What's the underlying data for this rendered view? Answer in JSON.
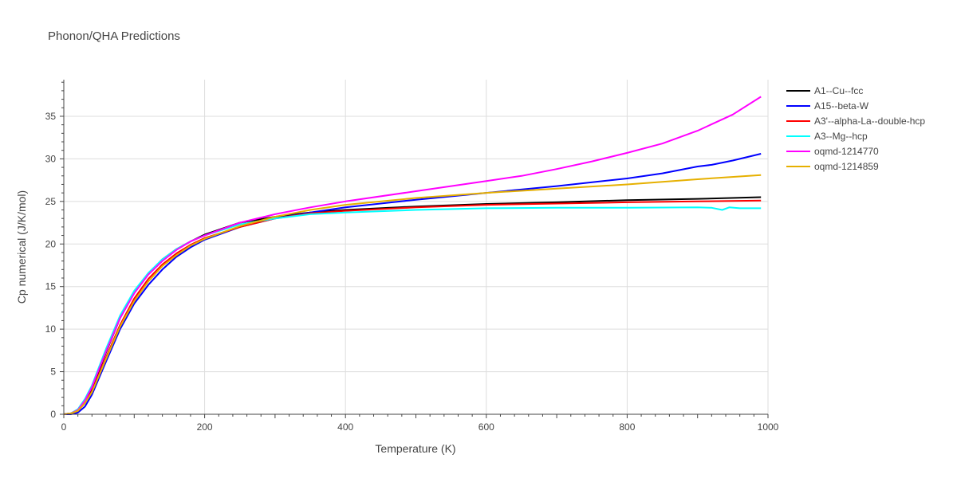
{
  "chart_data": {
    "type": "line",
    "title": "Phonon/QHA Predictions",
    "xlabel": "Temperature (K)",
    "ylabel": "Cp numerical (J/K/mol)",
    "xlim": [
      0,
      1000
    ],
    "ylim": [
      0,
      39.3
    ],
    "xticks": [
      0,
      200,
      400,
      600,
      800,
      1000
    ],
    "yticks": [
      0,
      5,
      10,
      15,
      20,
      25,
      30,
      35
    ],
    "grid": true,
    "legend_position": "top-right",
    "series": [
      {
        "name": "A1--Cu--fcc",
        "color": "#000000",
        "points": [
          [
            0,
            0
          ],
          [
            10,
            0.1
          ],
          [
            20,
            0.5
          ],
          [
            30,
            1.5
          ],
          [
            40,
            3.0
          ],
          [
            60,
            7.3
          ],
          [
            80,
            11.3
          ],
          [
            100,
            14.3
          ],
          [
            120,
            16.5
          ],
          [
            140,
            18.2
          ],
          [
            160,
            19.4
          ],
          [
            180,
            20.3
          ],
          [
            200,
            21.1
          ],
          [
            250,
            22.5
          ],
          [
            300,
            23.2
          ],
          [
            350,
            23.7
          ],
          [
            400,
            24.0
          ],
          [
            500,
            24.4
          ],
          [
            600,
            24.7
          ],
          [
            700,
            24.9
          ],
          [
            800,
            25.15
          ],
          [
            900,
            25.3
          ],
          [
            990,
            25.5
          ]
        ]
      },
      {
        "name": "A15--beta-W",
        "color": "#0000ff",
        "points": [
          [
            0,
            0
          ],
          [
            10,
            0.0
          ],
          [
            20,
            0.2
          ],
          [
            30,
            0.9
          ],
          [
            40,
            2.3
          ],
          [
            60,
            6.2
          ],
          [
            80,
            10.0
          ],
          [
            100,
            13.0
          ],
          [
            120,
            15.2
          ],
          [
            140,
            17.0
          ],
          [
            160,
            18.5
          ],
          [
            180,
            19.6
          ],
          [
            200,
            20.5
          ],
          [
            250,
            22.0
          ],
          [
            300,
            23.0
          ],
          [
            350,
            23.7
          ],
          [
            400,
            24.3
          ],
          [
            500,
            25.2
          ],
          [
            600,
            26.0
          ],
          [
            700,
            26.8
          ],
          [
            800,
            27.7
          ],
          [
            850,
            28.3
          ],
          [
            900,
            29.1
          ],
          [
            920,
            29.3
          ],
          [
            950,
            29.8
          ],
          [
            990,
            30.6
          ]
        ]
      },
      {
        "name": "A3'--alpha-La--double-hcp",
        "color": "#ff0000",
        "points": [
          [
            0,
            0
          ],
          [
            10,
            0.1
          ],
          [
            20,
            0.4
          ],
          [
            30,
            1.3
          ],
          [
            40,
            2.7
          ],
          [
            60,
            6.7
          ],
          [
            80,
            10.5
          ],
          [
            100,
            13.6
          ],
          [
            120,
            15.9
          ],
          [
            140,
            17.6
          ],
          [
            160,
            18.9
          ],
          [
            180,
            19.9
          ],
          [
            200,
            20.7
          ],
          [
            250,
            22.0
          ],
          [
            300,
            23.0
          ],
          [
            350,
            23.6
          ],
          [
            400,
            23.9
          ],
          [
            500,
            24.3
          ],
          [
            600,
            24.6
          ],
          [
            700,
            24.75
          ],
          [
            800,
            24.9
          ],
          [
            900,
            25.0
          ],
          [
            990,
            25.1
          ]
        ]
      },
      {
        "name": "A3--Mg--hcp",
        "color": "#00ffff",
        "points": [
          [
            0,
            0
          ],
          [
            10,
            0.1
          ],
          [
            20,
            0.6
          ],
          [
            30,
            1.8
          ],
          [
            40,
            3.4
          ],
          [
            60,
            7.7
          ],
          [
            80,
            11.6
          ],
          [
            100,
            14.5
          ],
          [
            120,
            16.6
          ],
          [
            140,
            18.2
          ],
          [
            160,
            19.4
          ],
          [
            180,
            20.3
          ],
          [
            200,
            21.0
          ],
          [
            250,
            22.3
          ],
          [
            300,
            23.0
          ],
          [
            350,
            23.5
          ],
          [
            400,
            23.7
          ],
          [
            500,
            24.0
          ],
          [
            600,
            24.2
          ],
          [
            700,
            24.25
          ],
          [
            800,
            24.25
          ],
          [
            900,
            24.3
          ],
          [
            920,
            24.25
          ],
          [
            935,
            24.0
          ],
          [
            945,
            24.3
          ],
          [
            960,
            24.2
          ],
          [
            990,
            24.2
          ]
        ]
      },
      {
        "name": "oqmd-1214770",
        "color": "#ff00ff",
        "points": [
          [
            0,
            0
          ],
          [
            10,
            0.1
          ],
          [
            20,
            0.5
          ],
          [
            30,
            1.6
          ],
          [
            40,
            3.2
          ],
          [
            60,
            7.4
          ],
          [
            80,
            11.3
          ],
          [
            100,
            14.2
          ],
          [
            120,
            16.4
          ],
          [
            140,
            18.0
          ],
          [
            160,
            19.3
          ],
          [
            180,
            20.3
          ],
          [
            200,
            21.0
          ],
          [
            250,
            22.5
          ],
          [
            300,
            23.5
          ],
          [
            350,
            24.3
          ],
          [
            400,
            25.0
          ],
          [
            500,
            26.2
          ],
          [
            600,
            27.4
          ],
          [
            650,
            28.0
          ],
          [
            700,
            28.8
          ],
          [
            750,
            29.7
          ],
          [
            800,
            30.7
          ],
          [
            850,
            31.8
          ],
          [
            900,
            33.3
          ],
          [
            950,
            35.2
          ],
          [
            990,
            37.3
          ]
        ]
      },
      {
        "name": "oqmd-1214859",
        "color": "#e6b000",
        "points": [
          [
            0,
            0
          ],
          [
            10,
            0.1
          ],
          [
            20,
            0.4
          ],
          [
            30,
            1.3
          ],
          [
            40,
            2.6
          ],
          [
            60,
            6.5
          ],
          [
            80,
            10.3
          ],
          [
            100,
            13.3
          ],
          [
            120,
            15.6
          ],
          [
            140,
            17.4
          ],
          [
            160,
            18.7
          ],
          [
            180,
            19.8
          ],
          [
            200,
            20.6
          ],
          [
            250,
            22.1
          ],
          [
            300,
            23.2
          ],
          [
            350,
            24.0
          ],
          [
            400,
            24.6
          ],
          [
            500,
            25.4
          ],
          [
            600,
            26.0
          ],
          [
            700,
            26.5
          ],
          [
            800,
            27.0
          ],
          [
            900,
            27.6
          ],
          [
            990,
            28.1
          ]
        ]
      }
    ]
  }
}
